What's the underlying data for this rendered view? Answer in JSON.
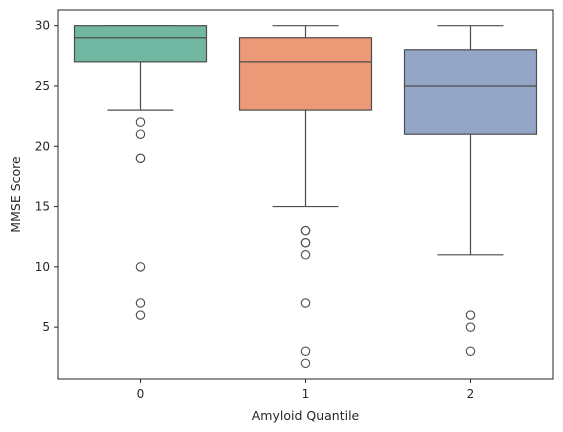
{
  "chart_data": {
    "type": "box",
    "xlabel": "Amyloid Quantile",
    "ylabel": "MMSE Score",
    "categories": [
      "0",
      "1",
      "2"
    ],
    "ylim": [
      0.7,
      31.3
    ],
    "yticks": [
      5,
      10,
      15,
      20,
      25,
      30
    ],
    "grid": false,
    "legend": "none",
    "boxes": [
      {
        "category": "0",
        "color": "#72b7a1",
        "whisker_low": 23,
        "q1": 27,
        "median": 29,
        "q3": 30,
        "whisker_high": 30,
        "outliers": [
          22,
          21,
          19,
          19,
          10,
          7,
          6
        ]
      },
      {
        "category": "1",
        "color": "#ec9977",
        "whisker_low": 15,
        "q1": 23,
        "median": 27,
        "q3": 29,
        "whisker_high": 30,
        "outliers": [
          13,
          13,
          12,
          12,
          11,
          7,
          3,
          2
        ]
      },
      {
        "category": "2",
        "color": "#94a5c6",
        "whisker_low": 11,
        "q1": 21,
        "median": 25,
        "q3": 28,
        "whisker_high": 30,
        "outliers": [
          6,
          5,
          3
        ]
      }
    ]
  }
}
